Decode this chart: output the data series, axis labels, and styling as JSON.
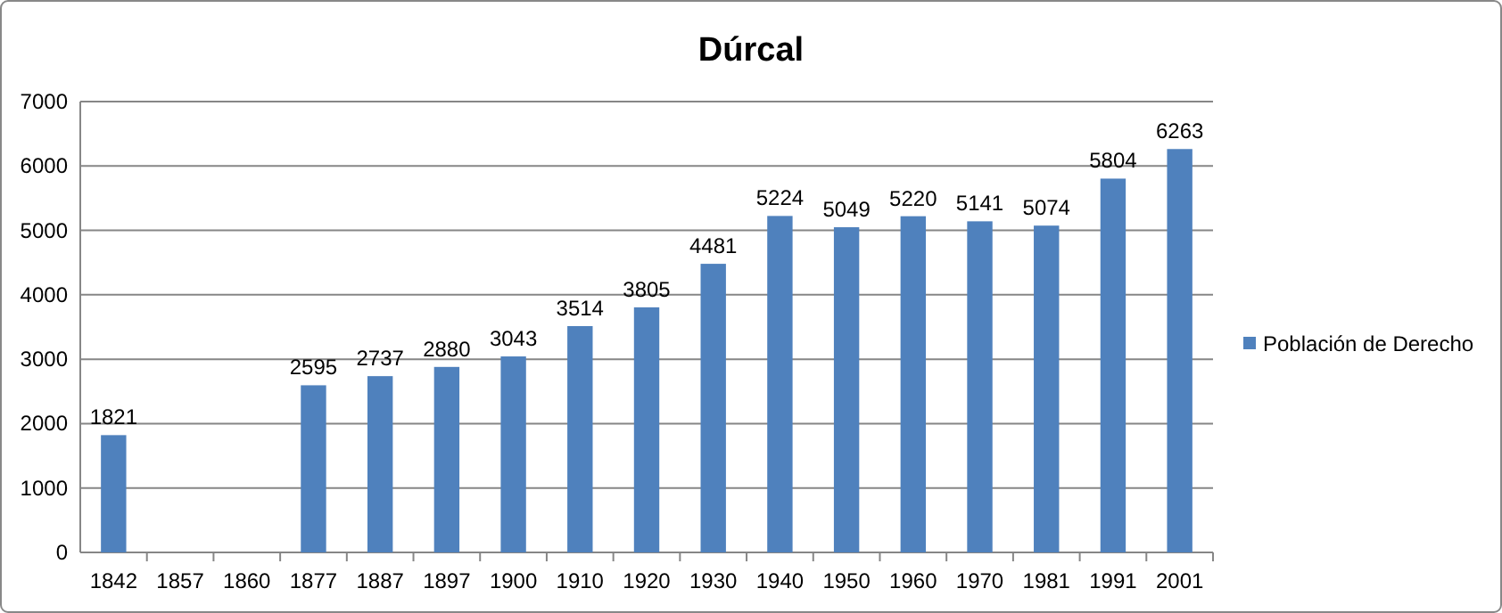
{
  "chart_data": {
    "type": "bar",
    "title": "Dúrcal",
    "categories": [
      "1842",
      "1857",
      "1860",
      "1877",
      "1887",
      "1897",
      "1900",
      "1910",
      "1920",
      "1930",
      "1940",
      "1950",
      "1960",
      "1970",
      "1981",
      "1991",
      "2001"
    ],
    "series": [
      {
        "name": "Población de Derecho",
        "color": "#4f81bd",
        "values": [
          1821,
          null,
          null,
          2595,
          2737,
          2880,
          3043,
          3514,
          3805,
          4481,
          5224,
          5049,
          5220,
          5141,
          5074,
          5804,
          6263
        ]
      }
    ],
    "ylim": [
      0,
      7000
    ],
    "yticks": [
      0,
      1000,
      2000,
      3000,
      4000,
      5000,
      6000,
      7000
    ],
    "grid": "y",
    "legend": "right",
    "data_labels": true
  }
}
